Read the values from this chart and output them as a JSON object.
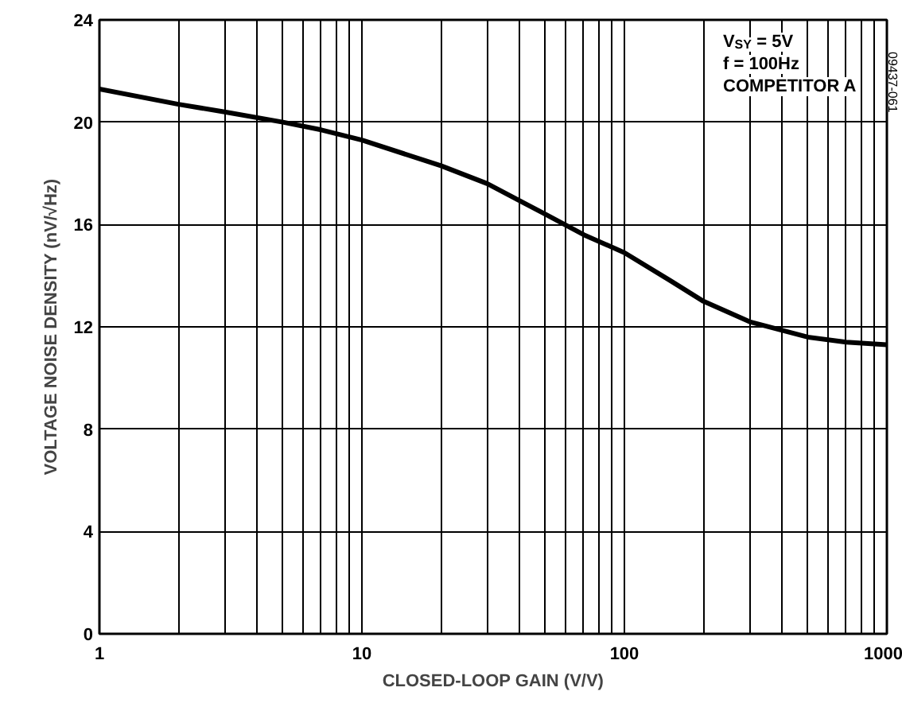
{
  "chart_data": {
    "type": "line",
    "xlabel": "CLOSED-LOOP GAIN (V/V)",
    "ylabel": "VOLTAGE NOISE DENSITY (nV/√Hz)",
    "x": [
      1,
      2,
      3,
      5,
      7,
      10,
      20,
      30,
      50,
      70,
      100,
      150,
      200,
      300,
      500,
      700,
      1000
    ],
    "series": [
      {
        "color": "#000000",
        "values": [
          21.3,
          20.7,
          20.4,
          20.0,
          19.7,
          19.3,
          18.3,
          17.6,
          16.4,
          15.6,
          14.9,
          13.8,
          13.0,
          12.2,
          11.6,
          11.4,
          11.3
        ]
      }
    ],
    "log": "x",
    "xlim": [
      1,
      1000
    ],
    "xticks": [
      1,
      10,
      100,
      1000
    ],
    "ylim": [
      0,
      24
    ],
    "yticks": [
      0,
      4,
      8,
      12,
      16,
      20,
      24
    ],
    "grid": true,
    "marker": "none",
    "line_style": "solid",
    "annotations": [
      "V$_{SY}$ = 5V",
      "f = 100Hz",
      "COMPETITOR A",
      "09437-061"
    ]
  }
}
